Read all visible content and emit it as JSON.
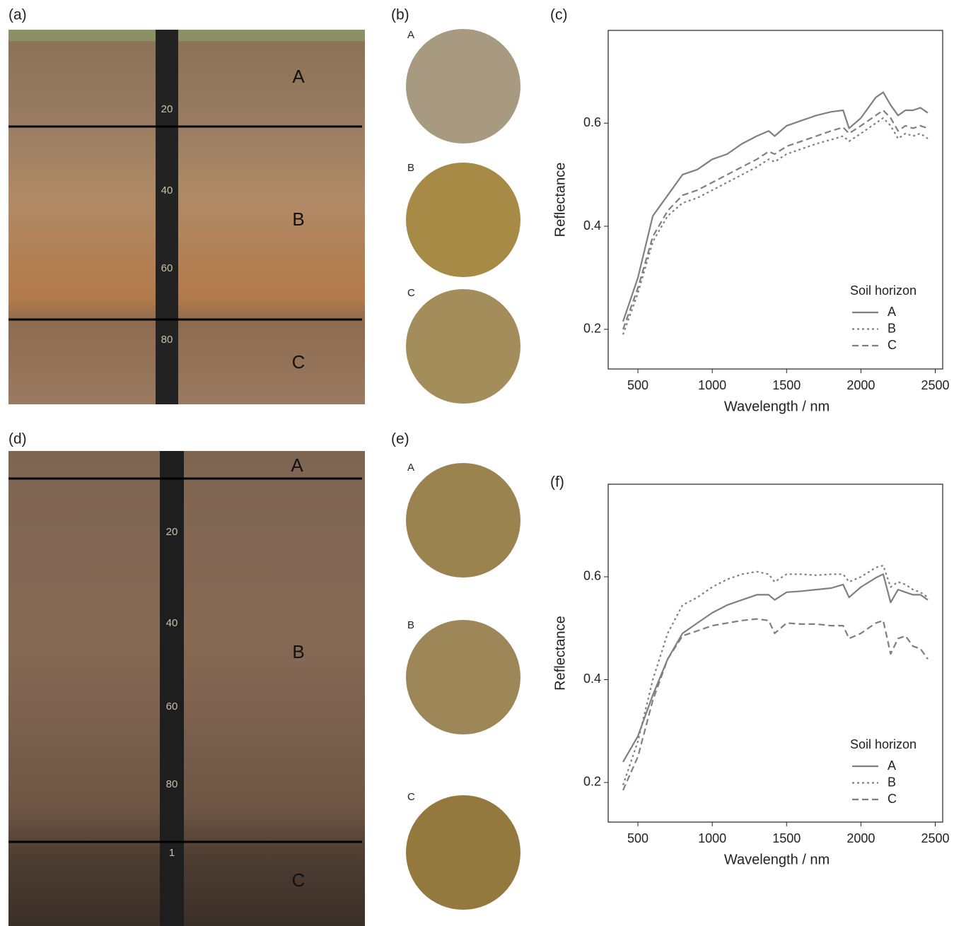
{
  "photos": [
    {
      "label": "(a)",
      "horizons": [
        "A",
        "B",
        "C"
      ],
      "ruler": [
        "20",
        "40",
        "60",
        "80"
      ]
    },
    {
      "label": "(d)",
      "horizons": [
        "A",
        "B",
        "C"
      ],
      "ruler": [
        "20",
        "40",
        "60",
        "80",
        "1"
      ]
    }
  ],
  "samples": [
    {
      "label": "(b)",
      "horizons": [
        "A",
        "B",
        "C"
      ]
    },
    {
      "label": "(e)",
      "horizons": [
        "A",
        "B",
        "C"
      ]
    }
  ],
  "chart_data": [
    {
      "type": "line",
      "panel_label": "(c)",
      "x_label": "Wavelength / nm",
      "y_label": "Reflectance",
      "legend_title": "Soil horizon",
      "legend_position": "bottom-right",
      "x": [
        400,
        500,
        600,
        700,
        800,
        900,
        1000,
        1100,
        1200,
        1300,
        1380,
        1420,
        1500,
        1600,
        1700,
        1800,
        1880,
        1920,
        2000,
        2100,
        2150,
        2200,
        2250,
        2300,
        2350,
        2400,
        2450
      ],
      "series": [
        {
          "name": "A",
          "color": "#7f7f7f",
          "dash": "solid",
          "values": [
            0.215,
            0.3,
            0.42,
            0.46,
            0.5,
            0.51,
            0.53,
            0.54,
            0.56,
            0.575,
            0.585,
            0.575,
            0.595,
            0.605,
            0.615,
            0.622,
            0.625,
            0.59,
            0.61,
            0.65,
            0.66,
            0.635,
            0.615,
            0.625,
            0.625,
            0.63,
            0.62
          ]
        },
        {
          "name": "B",
          "color": "#7f7f7f",
          "dash": "dotted",
          "values": [
            0.19,
            0.27,
            0.37,
            0.42,
            0.445,
            0.455,
            0.47,
            0.485,
            0.5,
            0.515,
            0.53,
            0.525,
            0.54,
            0.55,
            0.56,
            0.568,
            0.575,
            0.565,
            0.58,
            0.6,
            0.61,
            0.595,
            0.57,
            0.58,
            0.575,
            0.58,
            0.57
          ]
        },
        {
          "name": "C",
          "color": "#7f7f7f",
          "dash": "dashed",
          "values": [
            0.2,
            0.28,
            0.38,
            0.43,
            0.46,
            0.47,
            0.485,
            0.5,
            0.515,
            0.53,
            0.545,
            0.54,
            0.555,
            0.565,
            0.575,
            0.585,
            0.592,
            0.58,
            0.595,
            0.615,
            0.625,
            0.61,
            0.585,
            0.595,
            0.59,
            0.595,
            0.59
          ]
        }
      ],
      "xlim": [
        300,
        2550
      ],
      "ylim": [
        0.123,
        0.78
      ],
      "xticks": [
        500,
        1000,
        1500,
        2000,
        2500
      ],
      "yticks": [
        0.2,
        0.4,
        0.6
      ]
    },
    {
      "type": "line",
      "panel_label": "(f)",
      "x_label": "Wavelength / nm",
      "y_label": "Reflectance",
      "legend_title": "Soil horizon",
      "legend_position": "bottom-right",
      "x": [
        400,
        500,
        600,
        700,
        800,
        900,
        1000,
        1100,
        1200,
        1300,
        1380,
        1420,
        1500,
        1600,
        1700,
        1800,
        1880,
        1920,
        2000,
        2100,
        2150,
        2200,
        2250,
        2300,
        2350,
        2400,
        2450
      ],
      "series": [
        {
          "name": "A",
          "color": "#7f7f7f",
          "dash": "solid",
          "values": [
            0.24,
            0.29,
            0.37,
            0.44,
            0.49,
            0.51,
            0.53,
            0.545,
            0.555,
            0.565,
            0.565,
            0.555,
            0.57,
            0.572,
            0.575,
            0.578,
            0.585,
            0.56,
            0.58,
            0.598,
            0.605,
            0.55,
            0.575,
            0.57,
            0.565,
            0.565,
            0.555
          ]
        },
        {
          "name": "B",
          "color": "#7f7f7f",
          "dash": "dotted",
          "values": [
            0.195,
            0.28,
            0.4,
            0.49,
            0.545,
            0.56,
            0.58,
            0.595,
            0.605,
            0.61,
            0.605,
            0.59,
            0.605,
            0.605,
            0.603,
            0.605,
            0.605,
            0.59,
            0.6,
            0.618,
            0.622,
            0.58,
            0.59,
            0.585,
            0.575,
            0.57,
            0.56
          ]
        },
        {
          "name": "C",
          "color": "#7f7f7f",
          "dash": "dashed",
          "values": [
            0.185,
            0.25,
            0.36,
            0.44,
            0.485,
            0.495,
            0.505,
            0.51,
            0.515,
            0.518,
            0.515,
            0.49,
            0.51,
            0.508,
            0.508,
            0.505,
            0.505,
            0.48,
            0.49,
            0.51,
            0.515,
            0.45,
            0.48,
            0.485,
            0.465,
            0.46,
            0.44
          ]
        }
      ],
      "xlim": [
        300,
        2550
      ],
      "ylim": [
        0.123,
        0.78
      ],
      "xticks": [
        500,
        1000,
        1500,
        2000,
        2500
      ],
      "yticks": [
        0.2,
        0.4,
        0.6
      ]
    }
  ]
}
